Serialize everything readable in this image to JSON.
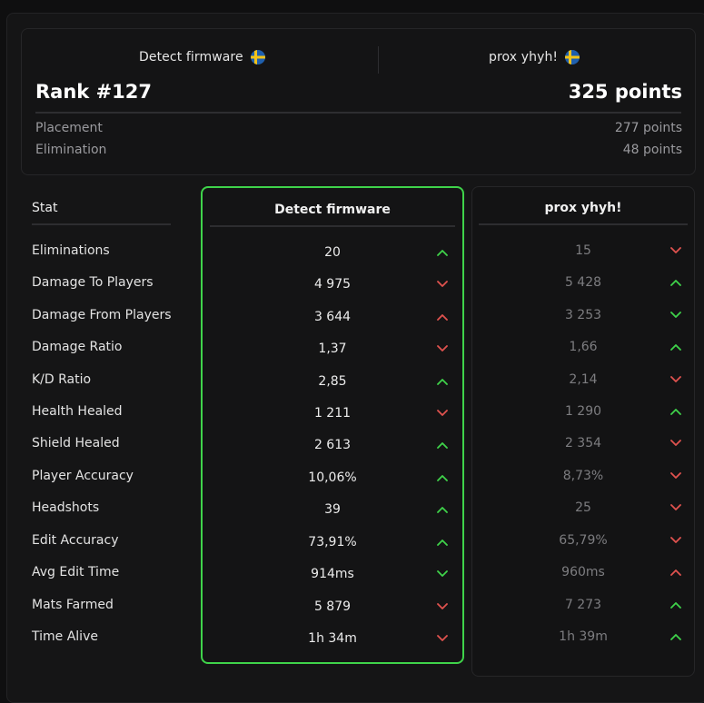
{
  "summary": {
    "player_a": "Detect firmware",
    "player_b": "prox yhyh!",
    "rank": "Rank #127",
    "total_points": "325 points",
    "breakdown": [
      {
        "label": "Placement",
        "value": "277 points"
      },
      {
        "label": "Elimination",
        "value": "48 points"
      }
    ]
  },
  "table": {
    "stat_header": "Stat",
    "col_a_header": "Detect firmware",
    "col_b_header": "prox yhyh!",
    "rows": [
      {
        "stat": "Eliminations",
        "a": "20",
        "a_dir": "up",
        "b": "15",
        "b_dir": "down"
      },
      {
        "stat": "Damage To Players",
        "a": "4 975",
        "a_dir": "down",
        "b": "5 428",
        "b_dir": "up"
      },
      {
        "stat": "Damage From Players",
        "a": "3 644",
        "a_dir": "up-red",
        "b": "3 253",
        "b_dir": "down-green"
      },
      {
        "stat": "Damage Ratio",
        "a": "1,37",
        "a_dir": "down",
        "b": "1,66",
        "b_dir": "up"
      },
      {
        "stat": "K/D Ratio",
        "a": "2,85",
        "a_dir": "up",
        "b": "2,14",
        "b_dir": "down"
      },
      {
        "stat": "Health Healed",
        "a": "1 211",
        "a_dir": "down",
        "b": "1 290",
        "b_dir": "up"
      },
      {
        "stat": "Shield Healed",
        "a": "2 613",
        "a_dir": "up",
        "b": "2 354",
        "b_dir": "down"
      },
      {
        "stat": "Player Accuracy",
        "a": "10,06%",
        "a_dir": "up",
        "b": "8,73%",
        "b_dir": "down"
      },
      {
        "stat": "Headshots",
        "a": "39",
        "a_dir": "up",
        "b": "25",
        "b_dir": "down"
      },
      {
        "stat": "Edit Accuracy",
        "a": "73,91%",
        "a_dir": "up",
        "b": "65,79%",
        "b_dir": "down"
      },
      {
        "stat": "Avg Edit Time",
        "a": "914ms",
        "a_dir": "down-green",
        "b": "960ms",
        "b_dir": "up-red"
      },
      {
        "stat": "Mats Farmed",
        "a": "5 879",
        "a_dir": "down",
        "b": "7 273",
        "b_dir": "up"
      },
      {
        "stat": "Time Alive",
        "a": "1h 34m",
        "a_dir": "down",
        "b": "1h 39m",
        "b_dir": "up"
      }
    ]
  },
  "colors": {
    "highlight_border": "#3fd34a",
    "arrow_green": "#3fd34a",
    "arrow_red": "#e0524f"
  }
}
